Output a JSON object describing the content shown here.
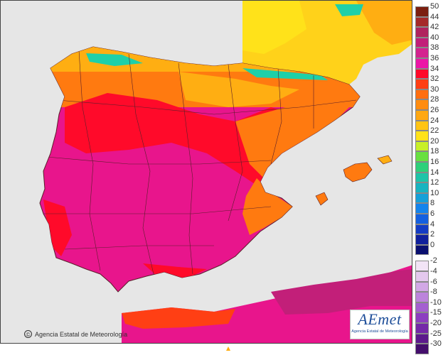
{
  "map": {
    "sea_color": "#e6e6e6",
    "border_color": "#5a1f2a",
    "land_colors": [
      "#e8158c",
      "#ff0a2a",
      "#ff7a10",
      "#ffae12",
      "#ffd21a",
      "#1ed0a8"
    ]
  },
  "credit": {
    "text": "Agencia Estatal de Meteorología",
    "icon": "copyright-icon"
  },
  "logo": {
    "mark": "AEmet",
    "subtitle": "Agencia Estatal de Meteorología"
  },
  "legend": {
    "positive": [
      {
        "label": "50",
        "color": "#7b1f10"
      },
      {
        "label": "44",
        "color": "#a52a2a"
      },
      {
        "label": "42",
        "color": "#b0245e"
      },
      {
        "label": "40",
        "color": "#c21f79"
      },
      {
        "label": "38",
        "color": "#d4238f"
      },
      {
        "label": "36",
        "color": "#ec16a6"
      },
      {
        "label": "34",
        "color": "#ff0a2a"
      },
      {
        "label": "32",
        "color": "#ff3f14"
      },
      {
        "label": "30",
        "color": "#ff6e10"
      },
      {
        "label": "28",
        "color": "#ff8c10"
      },
      {
        "label": "26",
        "color": "#ffa812"
      },
      {
        "label": "24",
        "color": "#ffc414"
      },
      {
        "label": "22",
        "color": "#ffe21a"
      },
      {
        "label": "20",
        "color": "#c8f028"
      },
      {
        "label": "18",
        "color": "#68e040"
      },
      {
        "label": "16",
        "color": "#2ed07a"
      },
      {
        "label": "14",
        "color": "#1ec4a8"
      },
      {
        "label": "12",
        "color": "#18b4c0"
      },
      {
        "label": "10",
        "color": "#16a0d8"
      },
      {
        "label": "8",
        "color": "#1484ec"
      },
      {
        "label": "6",
        "color": "#1460e0"
      },
      {
        "label": "4",
        "color": "#143cc4"
      },
      {
        "label": "2",
        "color": "#10209c"
      },
      {
        "label": "0",
        "color": "#0a1070"
      }
    ],
    "negative": [
      {
        "label": "-2",
        "color": "#f2e4f6"
      },
      {
        "label": "-4",
        "color": "#e4c8ee"
      },
      {
        "label": "-6",
        "color": "#d2a8e6"
      },
      {
        "label": "-8",
        "color": "#bc84dc"
      },
      {
        "label": "-10",
        "color": "#a460d0"
      },
      {
        "label": "-15",
        "color": "#8c3ec0"
      },
      {
        "label": "-20",
        "color": "#7428a8"
      },
      {
        "label": "-25",
        "color": "#5c1a8c"
      },
      {
        "label": "-30",
        "color": "#440e6c"
      }
    ]
  }
}
